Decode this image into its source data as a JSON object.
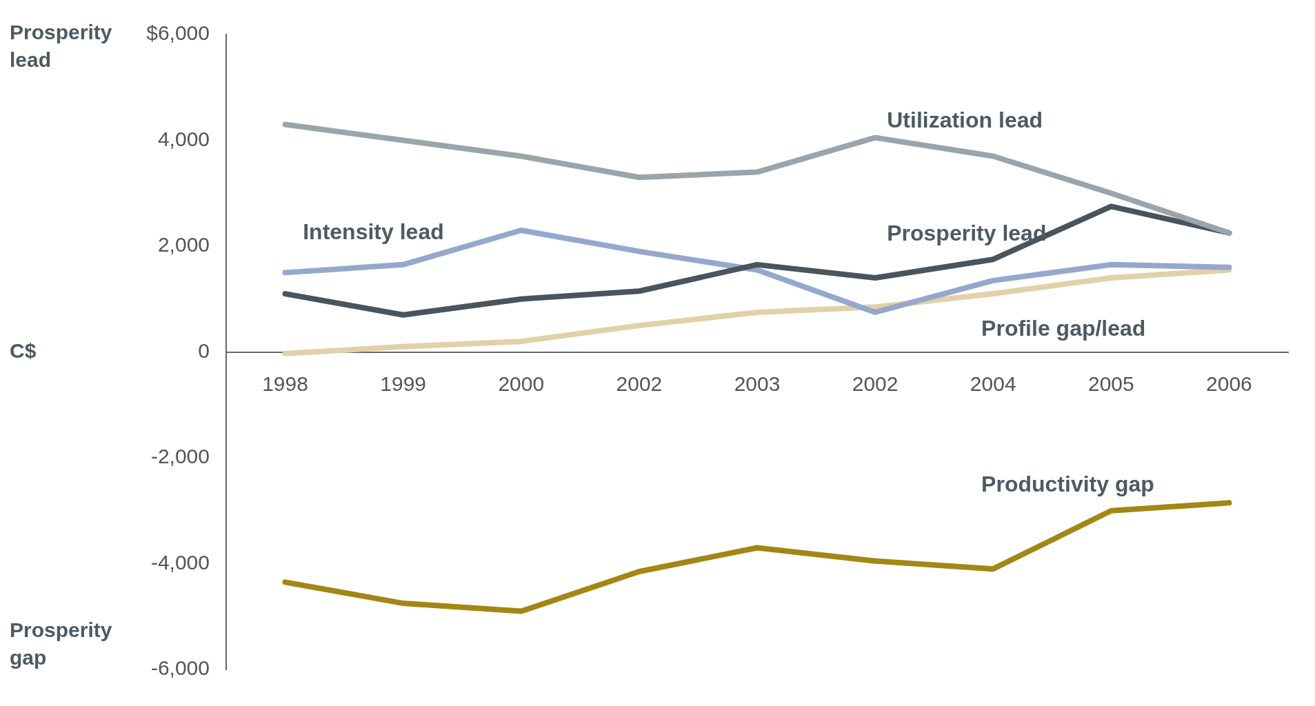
{
  "chart_data": {
    "type": "line",
    "categories": [
      "1998",
      "1999",
      "2000",
      "2002",
      "2003",
      "2002",
      "2004",
      "2005",
      "2006"
    ],
    "series": [
      {
        "name": "Utilization lead",
        "color": "#9aa5ab",
        "values": [
          4300,
          4000,
          3700,
          3300,
          3400,
          4050,
          3700,
          3000,
          2250
        ]
      },
      {
        "name": "Prosperity lead",
        "color": "#4a545c",
        "values": [
          1100,
          700,
          1000,
          1150,
          1650,
          1400,
          1750,
          2750,
          2250
        ]
      },
      {
        "name": "Intensity lead",
        "color": "#95a8cc",
        "values": [
          1500,
          1650,
          2300,
          1900,
          1550,
          750,
          1350,
          1650,
          1600
        ]
      },
      {
        "name": "Profile gap/lead",
        "color": "#e2d1a8",
        "values": [
          -30,
          100,
          200,
          500,
          750,
          850,
          1100,
          1400,
          1550
        ]
      },
      {
        "name": "Productivity gap",
        "color": "#a48614",
        "values": [
          -4350,
          -4750,
          -4900,
          -4150,
          -3700,
          -3950,
          -4100,
          -3000,
          -2850
        ]
      }
    ],
    "ylim": [
      -6000,
      6000
    ],
    "yticks": [
      {
        "value": 6000,
        "label": "$6,000"
      },
      {
        "value": 4000,
        "label": "4,000"
      },
      {
        "value": 2000,
        "label": "2,000"
      },
      0,
      {
        "value": -2000,
        "label": "-2,000"
      },
      {
        "value": -4000,
        "label": "-4,000"
      },
      {
        "value": -6000,
        "label": "-6,000"
      }
    ],
    "grid": false,
    "legend": false,
    "marker": "none",
    "line_style": "solid",
    "annotations": [
      "Prosperity lead",
      "C$",
      "Prosperity gap"
    ]
  }
}
